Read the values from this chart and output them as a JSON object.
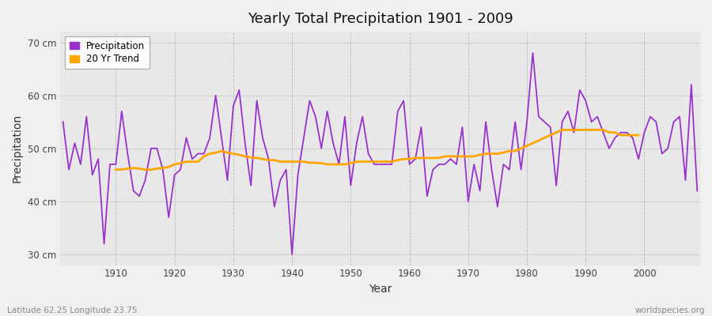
{
  "title": "Yearly Total Precipitation 1901 - 2009",
  "xlabel": "Year",
  "ylabel": "Precipitation",
  "subtitle_left": "Latitude 62.25 Longitude 23.75",
  "subtitle_right": "worldspecies.org",
  "ylim": [
    28,
    72
  ],
  "ytick_labels": [
    "30 cm",
    "40 cm",
    "50 cm",
    "60 cm",
    "70 cm"
  ],
  "ytick_values": [
    30,
    40,
    50,
    60,
    70
  ],
  "fig_bg_color": "#f0f0f0",
  "plot_bg_color": "#e8e8e8",
  "precip_color": "#9932CC",
  "trend_color": "#FFA500",
  "years": [
    1901,
    1902,
    1903,
    1904,
    1905,
    1906,
    1907,
    1908,
    1909,
    1910,
    1911,
    1912,
    1913,
    1914,
    1915,
    1916,
    1917,
    1918,
    1919,
    1920,
    1921,
    1922,
    1923,
    1924,
    1925,
    1926,
    1927,
    1928,
    1929,
    1930,
    1931,
    1932,
    1933,
    1934,
    1935,
    1936,
    1937,
    1938,
    1939,
    1940,
    1941,
    1942,
    1943,
    1944,
    1945,
    1946,
    1947,
    1948,
    1949,
    1950,
    1951,
    1952,
    1953,
    1954,
    1955,
    1956,
    1957,
    1958,
    1959,
    1960,
    1961,
    1962,
    1963,
    1964,
    1965,
    1966,
    1967,
    1968,
    1969,
    1970,
    1971,
    1972,
    1973,
    1974,
    1975,
    1976,
    1977,
    1978,
    1979,
    1980,
    1981,
    1982,
    1983,
    1984,
    1985,
    1986,
    1987,
    1988,
    1989,
    1990,
    1991,
    1992,
    1993,
    1994,
    1995,
    1996,
    1997,
    1998,
    1999,
    2000,
    2001,
    2002,
    2003,
    2004,
    2005,
    2006,
    2007,
    2008,
    2009
  ],
  "precip": [
    55,
    46,
    51,
    47,
    56,
    45,
    48,
    32,
    47,
    47,
    57,
    49,
    42,
    41,
    44,
    50,
    50,
    46,
    37,
    45,
    46,
    52,
    48,
    49,
    49,
    52,
    60,
    52,
    44,
    58,
    61,
    51,
    43,
    59,
    52,
    48,
    39,
    44,
    46,
    30,
    45,
    52,
    59,
    56,
    50,
    57,
    51,
    47,
    56,
    43,
    51,
    56,
    49,
    47,
    47,
    47,
    47,
    57,
    59,
    47,
    48,
    54,
    41,
    46,
    47,
    47,
    48,
    47,
    54,
    40,
    47,
    42,
    55,
    46,
    39,
    47,
    46,
    55,
    46,
    55,
    68,
    56,
    55,
    54,
    43,
    55,
    57,
    53,
    61,
    59,
    55,
    56,
    53,
    50,
    52,
    53,
    53,
    52,
    48,
    53,
    56,
    55,
    49,
    50,
    55,
    56,
    44,
    62,
    42
  ],
  "trend_years": [
    1910,
    1911,
    1912,
    1913,
    1914,
    1915,
    1916,
    1917,
    1918,
    1919,
    1920,
    1921,
    1922,
    1923,
    1924,
    1925,
    1926,
    1927,
    1928,
    1929,
    1930,
    1931,
    1932,
    1933,
    1934,
    1935,
    1936,
    1937,
    1938,
    1939,
    1940,
    1941,
    1942,
    1943,
    1944,
    1945,
    1946,
    1947,
    1948,
    1949,
    1950,
    1951,
    1952,
    1953,
    1954,
    1955,
    1956,
    1957,
    1958,
    1959,
    1960,
    1961,
    1962,
    1963,
    1964,
    1965,
    1966,
    1967,
    1968,
    1969,
    1970,
    1971,
    1972,
    1973,
    1974,
    1975,
    1976,
    1977,
    1978,
    1979,
    1980,
    1981,
    1982,
    1983,
    1984,
    1985,
    1986,
    1987,
    1988,
    1989,
    1990,
    1991,
    1992,
    1993,
    1994,
    1995,
    1996,
    1997,
    1998,
    1999
  ],
  "trend": [
    46.0,
    46.0,
    46.2,
    46.3,
    46.2,
    46.0,
    46.0,
    46.2,
    46.3,
    46.5,
    47.0,
    47.2,
    47.5,
    47.5,
    47.5,
    48.5,
    49.0,
    49.2,
    49.5,
    49.2,
    49.0,
    48.8,
    48.5,
    48.3,
    48.2,
    48.0,
    47.8,
    47.8,
    47.5,
    47.5,
    47.5,
    47.5,
    47.5,
    47.3,
    47.3,
    47.2,
    47.0,
    47.0,
    47.0,
    47.0,
    47.2,
    47.5,
    47.5,
    47.5,
    47.5,
    47.5,
    47.5,
    47.5,
    47.8,
    48.0,
    48.0,
    48.2,
    48.2,
    48.2,
    48.2,
    48.2,
    48.5,
    48.5,
    48.5,
    48.5,
    48.5,
    48.5,
    48.8,
    49.0,
    49.0,
    49.0,
    49.2,
    49.5,
    49.5,
    50.0,
    50.5,
    51.0,
    51.5,
    52.0,
    52.5,
    53.0,
    53.5,
    53.5,
    53.5,
    53.5,
    53.5,
    53.5,
    53.5,
    53.5,
    53.0,
    53.0,
    52.5,
    52.5,
    52.5,
    52.5
  ],
  "xtick_vals": [
    1910,
    1920,
    1930,
    1940,
    1950,
    1960,
    1970,
    1980,
    1990,
    2000
  ]
}
